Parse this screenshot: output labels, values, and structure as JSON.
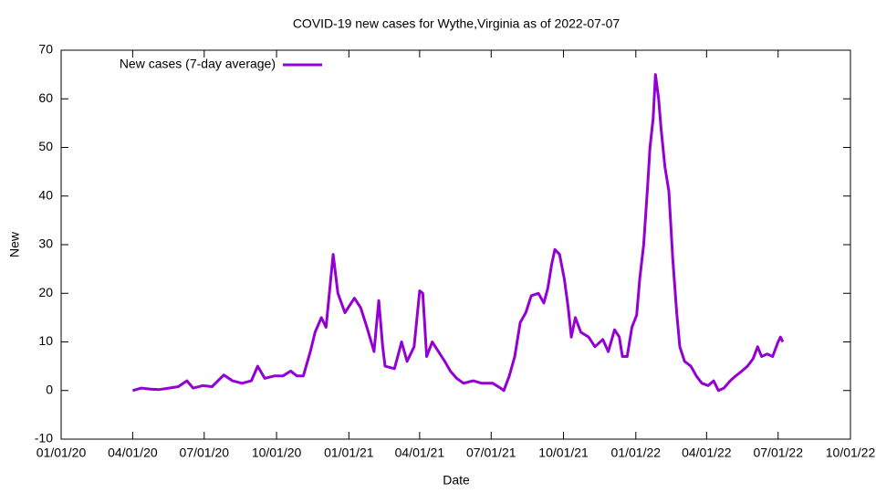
{
  "chart_data": {
    "type": "line",
    "title": "COVID-19 new cases for Wythe,Virginia as of 2022-07-07",
    "xlabel": "Date",
    "ylabel": "New",
    "xlim": [
      "2020-01-01",
      "2022-10-01"
    ],
    "xticks": [
      {
        "value": "2020-01-01",
        "label": "01/01/20"
      },
      {
        "value": "2020-04-01",
        "label": "04/01/20"
      },
      {
        "value": "2020-07-01",
        "label": "07/01/20"
      },
      {
        "value": "2020-10-01",
        "label": "10/01/20"
      },
      {
        "value": "2021-01-01",
        "label": "01/01/21"
      },
      {
        "value": "2021-04-01",
        "label": "04/01/21"
      },
      {
        "value": "2021-07-01",
        "label": "07/01/21"
      },
      {
        "value": "2021-10-01",
        "label": "10/01/21"
      },
      {
        "value": "2022-01-01",
        "label": "01/01/22"
      },
      {
        "value": "2022-04-01",
        "label": "04/01/22"
      },
      {
        "value": "2022-07-01",
        "label": "07/01/22"
      },
      {
        "value": "2022-10-01",
        "label": "10/01/22"
      }
    ],
    "ylim": [
      -10,
      70
    ],
    "yticks": [
      -10,
      0,
      10,
      20,
      30,
      40,
      50,
      60,
      70
    ],
    "grid": false,
    "legend": "top-left",
    "series": [
      {
        "name": "New cases (7-day average)",
        "color": "#9400d3",
        "x": [
          "2020-04-01",
          "2020-04-12",
          "2020-04-24",
          "2020-05-05",
          "2020-05-17",
          "2020-05-29",
          "2020-06-09",
          "2020-06-17",
          "2020-06-29",
          "2020-07-11",
          "2020-07-26",
          "2020-08-06",
          "2020-08-18",
          "2020-08-30",
          "2020-09-07",
          "2020-09-16",
          "2020-09-28",
          "2020-10-09",
          "2020-10-19",
          "2020-10-27",
          "2020-11-04",
          "2020-11-13",
          "2020-11-19",
          "2020-11-27",
          "2020-12-03",
          "2020-12-12",
          "2020-12-18",
          "2020-12-27",
          "2021-01-08",
          "2021-01-16",
          "2021-01-24",
          "2021-02-02",
          "2021-02-08",
          "2021-02-13",
          "2021-02-16",
          "2021-02-28",
          "2021-03-09",
          "2021-03-16",
          "2021-03-25",
          "2021-04-01",
          "2021-04-05",
          "2021-04-10",
          "2021-04-17",
          "2021-04-25",
          "2021-05-03",
          "2021-05-10",
          "2021-05-18",
          "2021-05-27",
          "2021-06-08",
          "2021-06-19",
          "2021-07-03",
          "2021-07-13",
          "2021-07-17",
          "2021-07-24",
          "2021-07-31",
          "2021-08-07",
          "2021-08-14",
          "2021-08-21",
          "2021-08-30",
          "2021-09-06",
          "2021-09-11",
          "2021-09-16",
          "2021-09-20",
          "2021-09-26",
          "2021-10-02",
          "2021-10-07",
          "2021-10-11",
          "2021-10-16",
          "2021-10-23",
          "2021-11-02",
          "2021-11-10",
          "2021-11-20",
          "2021-11-27",
          "2021-12-05",
          "2021-12-11",
          "2021-12-15",
          "2021-12-21",
          "2021-12-27",
          "2022-01-02",
          "2022-01-06",
          "2022-01-11",
          "2022-01-16",
          "2022-01-19",
          "2022-01-23",
          "2022-01-26",
          "2022-01-30",
          "2022-02-02",
          "2022-02-07",
          "2022-02-12",
          "2022-02-17",
          "2022-02-22",
          "2022-02-26",
          "2022-03-04",
          "2022-03-12",
          "2022-03-19",
          "2022-03-26",
          "2022-04-03",
          "2022-04-10",
          "2022-04-16",
          "2022-04-23",
          "2022-05-01",
          "2022-05-08",
          "2022-05-16",
          "2022-05-23",
          "2022-05-30",
          "2022-06-05",
          "2022-06-10",
          "2022-06-17",
          "2022-06-24",
          "2022-07-01",
          "2022-07-04",
          "2022-07-07"
        ],
        "values": [
          0,
          0.5,
          0.3,
          0.2,
          0.5,
          0.8,
          2,
          0.5,
          1,
          0.8,
          3.2,
          2,
          1.5,
          2,
          5,
          2.5,
          3,
          3,
          4,
          3,
          3,
          8,
          12,
          15,
          13,
          28,
          20,
          16,
          19,
          17,
          13,
          8,
          18.5,
          9,
          5,
          4.5,
          10,
          6,
          9,
          20.5,
          20,
          7,
          10,
          8,
          6,
          4,
          2.5,
          1.5,
          2,
          1.5,
          1.5,
          0.5,
          0,
          3,
          7,
          14,
          16,
          19.5,
          20,
          18,
          21,
          26,
          29,
          28,
          23,
          17,
          11,
          15,
          12,
          11,
          9,
          10.5,
          8,
          12.5,
          11,
          7,
          7,
          13,
          15.5,
          23,
          30,
          42,
          50,
          56,
          65,
          60,
          54,
          46,
          41,
          27,
          16,
          9,
          6,
          5,
          3,
          1.5,
          1,
          2,
          0,
          0.5,
          2,
          3,
          4,
          5,
          6.5,
          9,
          7,
          7.5,
          7,
          10,
          11,
          10
        ]
      }
    ]
  }
}
